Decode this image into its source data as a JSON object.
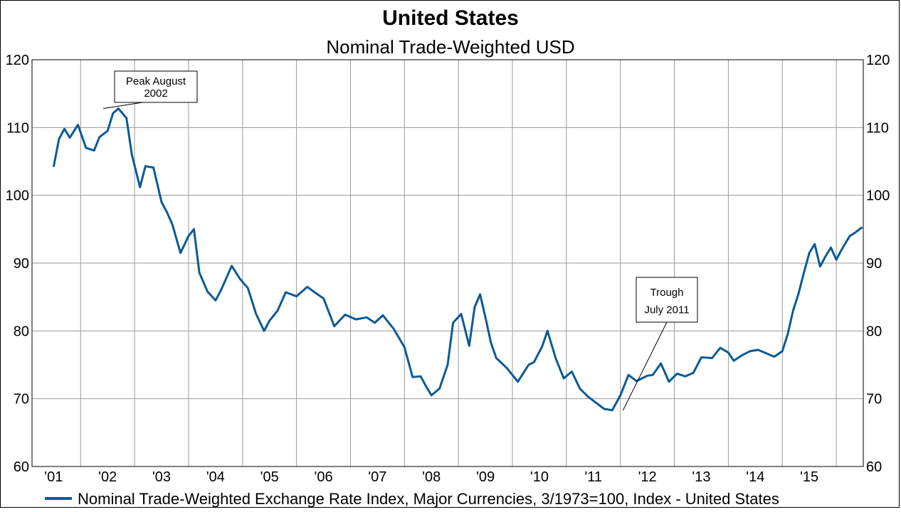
{
  "chart_data": {
    "type": "line",
    "title": "United States",
    "subtitle": "Nominal Trade-Weighted USD",
    "xlabel": "",
    "ylabel": "",
    "ylim": [
      60,
      120
    ],
    "yticks": [
      "60",
      "70",
      "80",
      "90",
      "100",
      "110",
      "120"
    ],
    "xticks": [
      "'01",
      "'02",
      "'03",
      "'04",
      "'05",
      "'06",
      "'07",
      "'08",
      "'09",
      "'10",
      "'11",
      "'12",
      "'13",
      "'14",
      "'15"
    ],
    "grid": true,
    "legend_position": "bottom",
    "line_color": "#0a5a96",
    "series": [
      {
        "name": "Nominal Trade-Weighted Exchange Rate Index, Major Currencies, 3/1973=100, Index - United States",
        "x": [
          2001.0,
          2001.1,
          2001.2,
          2001.3,
          2001.45,
          2001.6,
          2001.75,
          2001.85,
          2002.0,
          2002.1,
          2002.2,
          2002.35,
          2002.45,
          2002.6,
          2002.7,
          2002.85,
          2003.0,
          2003.1,
          2003.2,
          2003.35,
          2003.5,
          2003.6,
          2003.7,
          2003.85,
          2004.0,
          2004.1,
          2004.3,
          2004.45,
          2004.6,
          2004.75,
          2004.9,
          2005.0,
          2005.15,
          2005.3,
          2005.5,
          2005.7,
          2005.85,
          2006.0,
          2006.2,
          2006.4,
          2006.6,
          2006.8,
          2006.95,
          2007.1,
          2007.3,
          2007.5,
          2007.65,
          2007.8,
          2007.9,
          2008.0,
          2008.15,
          2008.3,
          2008.4,
          2008.55,
          2008.7,
          2008.8,
          2008.9,
          2009.0,
          2009.1,
          2009.2,
          2009.4,
          2009.6,
          2009.8,
          2009.9,
          2010.05,
          2010.15,
          2010.3,
          2010.45,
          2010.6,
          2010.75,
          2010.9,
          2011.05,
          2011.2,
          2011.35,
          2011.5,
          2011.65,
          2011.8,
          2012.0,
          2012.1,
          2012.25,
          2012.4,
          2012.55,
          2012.7,
          2012.85,
          2013.0,
          2013.2,
          2013.35,
          2013.5,
          2013.6,
          2013.75,
          2013.9,
          2014.05,
          2014.2,
          2014.35,
          2014.5,
          2014.6,
          2014.7,
          2014.8,
          2014.9,
          2015.0,
          2015.1,
          2015.2,
          2015.3,
          2015.4,
          2015.5,
          2015.6,
          2015.75,
          2015.85,
          2015.98
        ],
        "values": [
          104.2,
          108.3,
          109.8,
          108.5,
          110.4,
          107.0,
          106.6,
          108.6,
          109.5,
          112.1,
          112.8,
          111.4,
          106.0,
          101.2,
          104.3,
          104.1,
          99.0,
          97.5,
          95.7,
          91.5,
          94.0,
          95.0,
          88.6,
          85.8,
          84.5,
          86.0,
          89.6,
          87.7,
          86.3,
          82.5,
          80.0,
          81.5,
          83.0,
          85.7,
          85.1,
          86.5,
          85.6,
          84.8,
          80.7,
          82.4,
          81.7,
          82.0,
          81.2,
          82.3,
          80.3,
          77.6,
          73.2,
          73.3,
          71.8,
          70.5,
          71.5,
          75.0,
          81.2,
          82.5,
          77.8,
          83.5,
          85.4,
          82.0,
          78.3,
          76.0,
          74.5,
          72.5,
          75.0,
          75.4,
          77.7,
          80.0,
          76.0,
          73.0,
          74.0,
          71.5,
          70.3,
          69.4,
          68.5,
          68.3,
          70.5,
          73.5,
          72.6,
          73.4,
          73.5,
          75.2,
          72.5,
          73.7,
          73.3,
          73.8,
          76.1,
          76.0,
          77.5,
          76.8,
          75.6,
          76.4,
          77.0,
          77.2,
          76.7,
          76.2,
          77.0,
          79.5,
          83.0,
          85.5,
          88.6,
          91.5,
          92.8,
          89.5,
          91.0,
          92.3,
          90.5,
          92.0,
          94.0,
          94.5,
          95.3
        ]
      }
    ],
    "annotations": [
      {
        "lines": [
          "Peak August",
          "2002"
        ],
        "x": 2001.92,
        "y": 112.8
      },
      {
        "lines": [
          "Trough",
          "July 2011"
        ],
        "x": 2011.55,
        "y": 68.3
      }
    ]
  }
}
